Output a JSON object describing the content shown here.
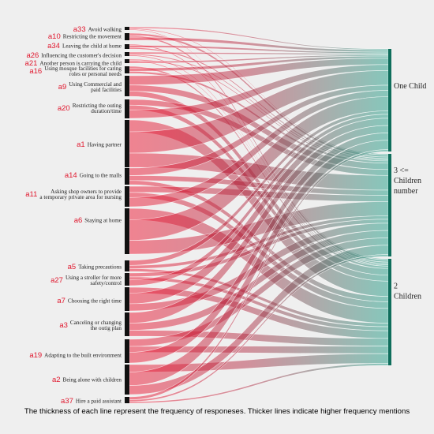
{
  "diagram": {
    "type": "sankey",
    "left_nodes": [
      {
        "code": "a33",
        "lines": [
          "Avoid walking"
        ]
      },
      {
        "code": "a10",
        "lines": [
          "Restricting the movement"
        ]
      },
      {
        "code": "a34",
        "lines": [
          "Leaving the child at home"
        ]
      },
      {
        "code": "a26",
        "lines": [
          "Influencing the customer's decision"
        ]
      },
      {
        "code": "a21",
        "lines": [
          "Another person is carrying the child"
        ]
      },
      {
        "code": "a16",
        "lines": [
          "Using mosque facilities for caring",
          "roles or personal needs"
        ]
      },
      {
        "code": "a9",
        "lines": [
          "Using Commercial and",
          "paid facilities"
        ]
      },
      {
        "code": "a20",
        "lines": [
          "Restricting the outing",
          "duration/time"
        ]
      },
      {
        "code": "a1",
        "lines": [
          "Having partner"
        ]
      },
      {
        "code": "a14",
        "lines": [
          "Going to the malls"
        ]
      },
      {
        "code": "a11",
        "lines": [
          "Asking shop owners to provide",
          "a temporary private area for nursing"
        ]
      },
      {
        "code": "a6",
        "lines": [
          "Staying at home"
        ]
      },
      {
        "code": "a5",
        "lines": [
          "Taking precautions"
        ]
      },
      {
        "code": "a27",
        "lines": [
          "Using a stroller for more",
          "safety/control"
        ]
      },
      {
        "code": "a7",
        "lines": [
          "Choosing the right  time"
        ]
      },
      {
        "code": "a3",
        "lines": [
          "Canceling or changing",
          "the outig plan"
        ]
      },
      {
        "code": "a19",
        "lines": [
          "Adapting to the built environment"
        ]
      },
      {
        "code": "a2",
        "lines": [
          "Being alone with children"
        ]
      },
      {
        "code": "a37",
        "lines": [
          "Hire a paid assistant"
        ]
      }
    ],
    "right_nodes": [
      {
        "lines": [
          "One Child"
        ]
      },
      {
        "lines": [
          "3 <=",
          "Children",
          "number"
        ]
      },
      {
        "lines": [
          "2",
          "Children"
        ]
      }
    ],
    "caption": "The thickness of each line represent the frequency of responeses. Thicker lines indicate higher frequency mentions",
    "colors": {
      "left": "#f0203a",
      "right": "#1a9e86",
      "background": "#efefef"
    }
  }
}
